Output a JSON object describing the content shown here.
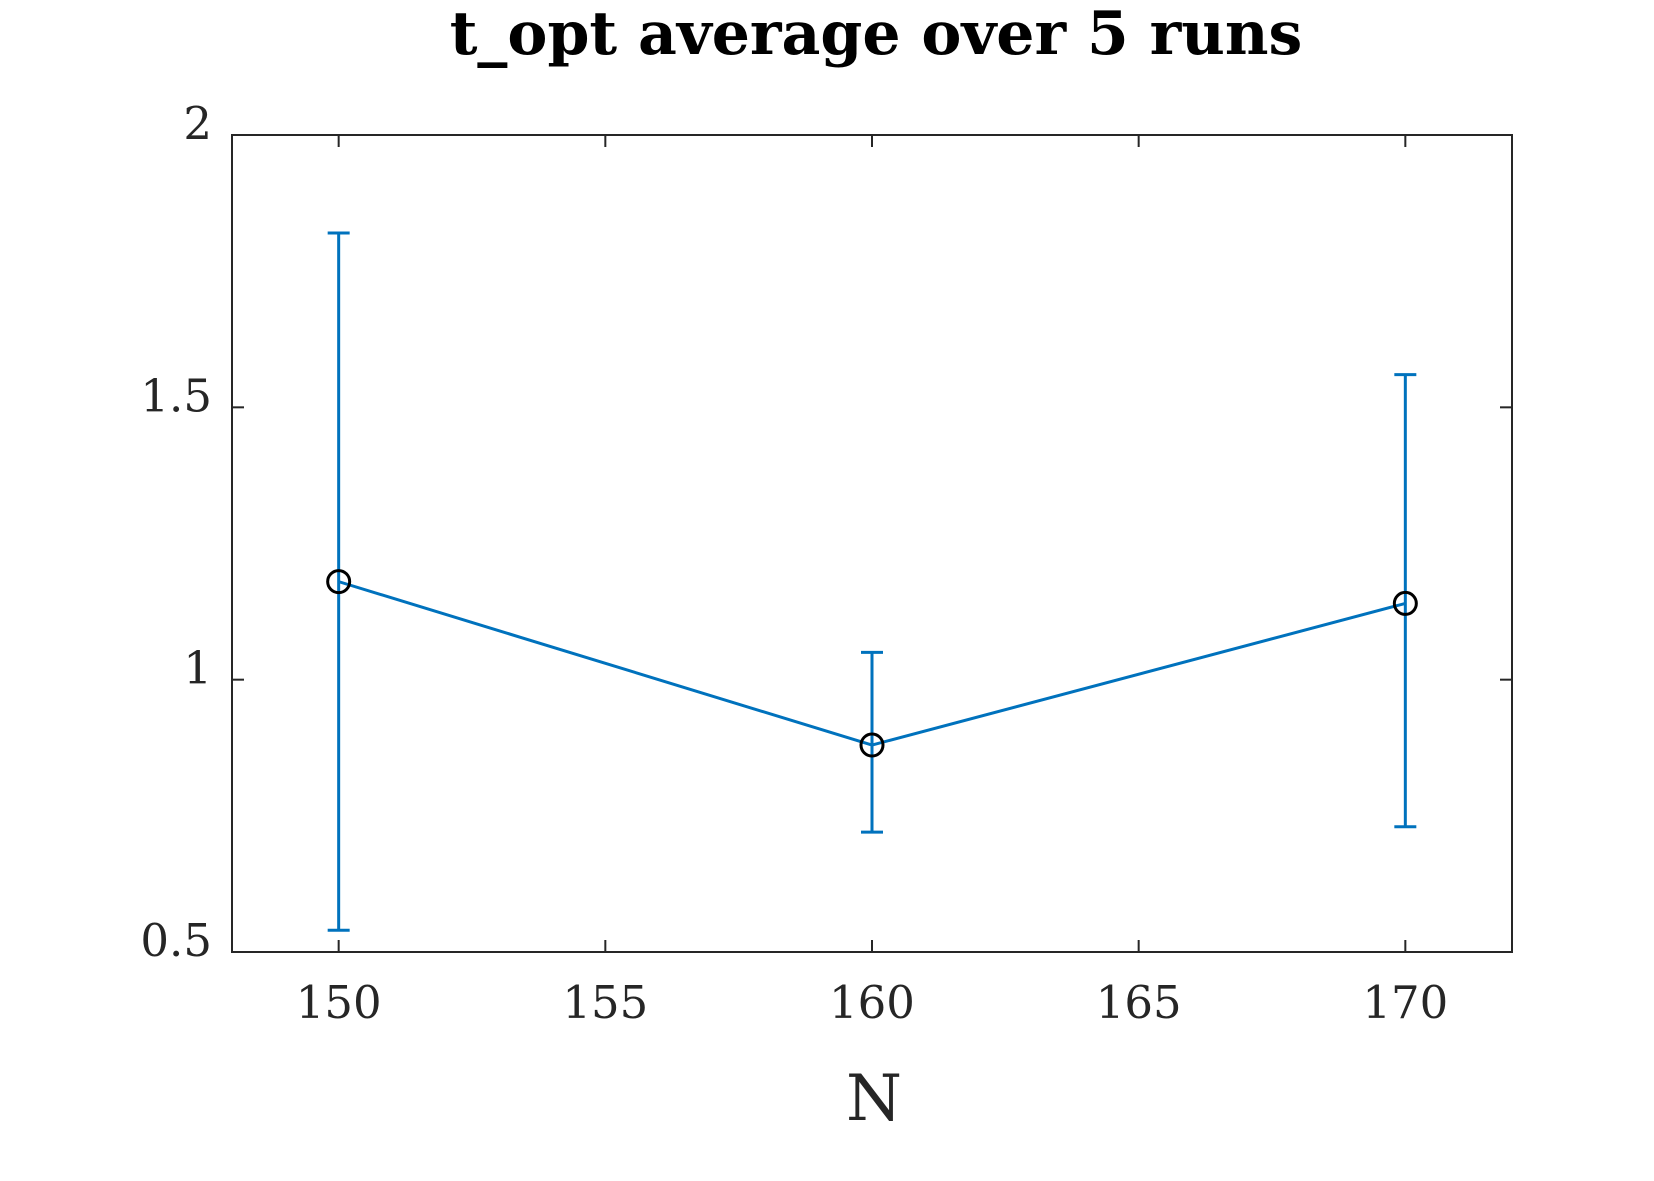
{
  "chart_data": {
    "type": "line",
    "title": "t_opt average over 5 runs",
    "xlabel": "N",
    "ylabel": "",
    "xlim": [
      148,
      172
    ],
    "ylim": [
      0.5,
      2
    ],
    "xticks": [
      150,
      155,
      160,
      165,
      170
    ],
    "xtick_labels": [
      "150",
      "155",
      "160",
      "165",
      "170"
    ],
    "yticks": [
      0.5,
      1,
      1.5,
      2
    ],
    "ytick_labels": [
      "0.5",
      "1",
      "1.5",
      "2"
    ],
    "grid": false,
    "legend": "none",
    "series": [
      {
        "x": [
          150,
          160,
          170
        ],
        "y": [
          1.18,
          0.88,
          1.14
        ],
        "err_low": [
          0.54,
          0.72,
          0.73
        ],
        "err_high": [
          1.82,
          1.05,
          1.56
        ],
        "line_color": "#0072BD",
        "marker": "circle",
        "marker_color": "#000000"
      }
    ]
  }
}
